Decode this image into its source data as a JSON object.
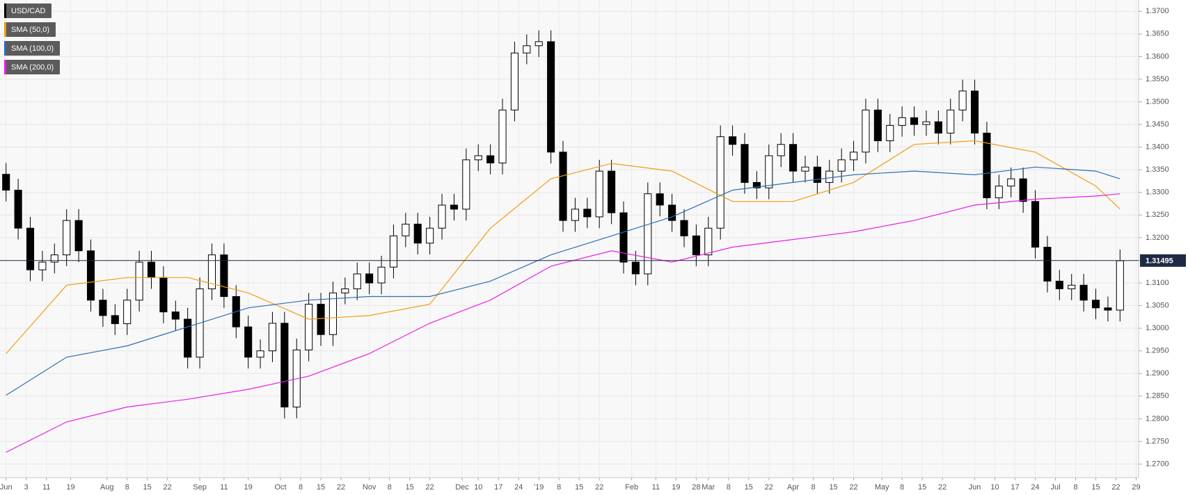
{
  "chart_data": {
    "type": "candlestick",
    "series": [
      {
        "name": "USD/CAD",
        "color": "#000000",
        "x": [
          0,
          3,
          6,
          9,
          12,
          15,
          18,
          21,
          24,
          27,
          30,
          33,
          36,
          39,
          42,
          45,
          48,
          51,
          54,
          57,
          60,
          63,
          66,
          69,
          72,
          75,
          78,
          81,
          84,
          87,
          90,
          93,
          96,
          99,
          102,
          105,
          108,
          111,
          114,
          117,
          120,
          123,
          126,
          129,
          132,
          135,
          138,
          141,
          144,
          147,
          150,
          153,
          156,
          159,
          162,
          165,
          168,
          171,
          174,
          177,
          180,
          183,
          186,
          189,
          192,
          195,
          198,
          201,
          204,
          207,
          210,
          213,
          216,
          219,
          222,
          225,
          228,
          231,
          234,
          237,
          240,
          243,
          246,
          249,
          252,
          255,
          258,
          261,
          264,
          267,
          270,
          273,
          276
        ],
        "open": [
          1.334,
          1.3305,
          1.3221,
          1.3129,
          1.3146,
          1.3162,
          1.3238,
          1.3171,
          1.3062,
          1.3028,
          1.301,
          1.3062,
          1.3146,
          1.3112,
          1.3036,
          1.302,
          1.2936,
          1.3087,
          1.3162,
          1.307,
          1.3003,
          1.2936,
          1.295,
          1.3011,
          1.2826,
          1.2952,
          1.3053,
          1.2986,
          1.3078,
          1.3087,
          1.312,
          1.31,
          1.3135,
          1.3204,
          1.323,
          1.3188,
          1.3221,
          1.3272,
          1.3263,
          1.3372,
          1.3381,
          1.3365,
          1.3482,
          1.3608,
          1.3624,
          1.3633,
          1.3389,
          1.3238,
          1.3263,
          1.3246,
          1.3347,
          1.3255,
          1.3146,
          1.312,
          1.3297,
          1.3272,
          1.3238,
          1.3204,
          1.3162,
          1.3221,
          1.3423,
          1.3406,
          1.3322,
          1.331,
          1.3381,
          1.3406,
          1.3347,
          1.3356,
          1.3322,
          1.3347,
          1.3372,
          1.3389,
          1.3482,
          1.3414,
          1.3448,
          1.3465,
          1.345,
          1.3456,
          1.3431,
          1.3482,
          1.3524,
          1.3431,
          1.3288,
          1.3314,
          1.333,
          1.328,
          1.3179,
          1.3104,
          1.3087,
          1.3095,
          1.3062,
          1.3045,
          1.304
        ],
        "high": [
          1.3365,
          1.333,
          1.3246,
          1.3171,
          1.3187,
          1.3263,
          1.3263,
          1.3196,
          1.3087,
          1.3053,
          1.3087,
          1.3171,
          1.3171,
          1.3137,
          1.3061,
          1.3045,
          1.3112,
          1.3187,
          1.3187,
          1.3095,
          1.3028,
          1.2975,
          1.3036,
          1.3036,
          1.2977,
          1.3078,
          1.3078,
          1.3103,
          1.3112,
          1.3145,
          1.3145,
          1.316,
          1.3229,
          1.3255,
          1.3255,
          1.3246,
          1.3297,
          1.3297,
          1.3397,
          1.3406,
          1.3406,
          1.3507,
          1.3633,
          1.3649,
          1.3658,
          1.3658,
          1.3414,
          1.3288,
          1.3288,
          1.3372,
          1.3372,
          1.328,
          1.3171,
          1.3322,
          1.3322,
          1.3297,
          1.3263,
          1.3229,
          1.3246,
          1.3448,
          1.3448,
          1.3431,
          1.3347,
          1.3406,
          1.3431,
          1.3431,
          1.3381,
          1.3381,
          1.3372,
          1.3397,
          1.3414,
          1.3507,
          1.3507,
          1.3473,
          1.349,
          1.349,
          1.3481,
          1.3481,
          1.3507,
          1.3549,
          1.3549,
          1.3456,
          1.3339,
          1.3355,
          1.3355,
          1.3305,
          1.3204,
          1.3129,
          1.312,
          1.312,
          1.3087,
          1.307,
          1.3174
        ],
        "low": [
          1.328,
          1.3196,
          1.3104,
          1.3104,
          1.3121,
          1.3137,
          1.3146,
          1.3037,
          1.3003,
          1.2985,
          1.2985,
          1.3037,
          1.3087,
          1.3011,
          1.2995,
          1.2911,
          1.2911,
          1.3062,
          1.3045,
          1.2978,
          1.2911,
          1.2911,
          1.2925,
          1.2801,
          1.2801,
          1.2927,
          1.2961,
          1.2961,
          1.3053,
          1.3062,
          1.3075,
          1.3075,
          1.311,
          1.3179,
          1.3163,
          1.3163,
          1.3196,
          1.3238,
          1.3238,
          1.3347,
          1.334,
          1.334,
          1.3457,
          1.3583,
          1.3599,
          1.3364,
          1.3213,
          1.3213,
          1.3221,
          1.3221,
          1.323,
          1.3121,
          1.3095,
          1.3095,
          1.3247,
          1.3213,
          1.3179,
          1.3137,
          1.3137,
          1.3196,
          1.3381,
          1.3297,
          1.3285,
          1.3285,
          1.3356,
          1.3322,
          1.3322,
          1.3297,
          1.3297,
          1.3322,
          1.3347,
          1.3364,
          1.3389,
          1.3389,
          1.3423,
          1.3425,
          1.3425,
          1.3406,
          1.3406,
          1.3457,
          1.3406,
          1.3263,
          1.3263,
          1.3289,
          1.3255,
          1.3154,
          1.3079,
          1.3062,
          1.3062,
          1.3037,
          1.302,
          1.3015,
          1.3015
        ],
        "close": [
          1.3305,
          1.3221,
          1.3129,
          1.3146,
          1.3162,
          1.3238,
          1.3171,
          1.3062,
          1.3028,
          1.301,
          1.3062,
          1.3146,
          1.3112,
          1.3036,
          1.302,
          1.2936,
          1.3087,
          1.3162,
          1.307,
          1.3003,
          1.2936,
          1.295,
          1.3011,
          1.2826,
          1.2952,
          1.3053,
          1.2986,
          1.3078,
          1.3087,
          1.312,
          1.31,
          1.3135,
          1.3204,
          1.323,
          1.3188,
          1.3221,
          1.3272,
          1.3263,
          1.3372,
          1.3381,
          1.3365,
          1.3482,
          1.3608,
          1.3624,
          1.3633,
          1.3389,
          1.3238,
          1.3263,
          1.3246,
          1.3347,
          1.3255,
          1.3146,
          1.312,
          1.3297,
          1.3272,
          1.3238,
          1.3204,
          1.3162,
          1.3221,
          1.3423,
          1.3406,
          1.3322,
          1.331,
          1.3381,
          1.3406,
          1.3347,
          1.3356,
          1.3322,
          1.3347,
          1.3372,
          1.3389,
          1.3482,
          1.3414,
          1.3448,
          1.3465,
          1.345,
          1.3456,
          1.3431,
          1.3482,
          1.3524,
          1.3431,
          1.3288,
          1.3314,
          1.333,
          1.328,
          1.3179,
          1.3104,
          1.3087,
          1.3095,
          1.3062,
          1.3045,
          1.304,
          1.3149
        ]
      }
    ],
    "sma": [
      {
        "name": "SMA (50,0)",
        "color": "#f39c12",
        "x": [
          0,
          15,
          30,
          45,
          60,
          75,
          90,
          105,
          120,
          135,
          150,
          165,
          180,
          195,
          210,
          225,
          240,
          255,
          270,
          276
        ],
        "values": [
          1.2944,
          1.3095,
          1.3112,
          1.3112,
          1.3078,
          1.302,
          1.3028,
          1.3053,
          1.3221,
          1.333,
          1.3364,
          1.3347,
          1.328,
          1.328,
          1.3322,
          1.3406,
          1.3414,
          1.3389,
          1.3314,
          1.3263
        ]
      },
      {
        "name": "SMA (100,0)",
        "color": "#2f6db5",
        "x": [
          0,
          15,
          30,
          45,
          60,
          75,
          90,
          105,
          120,
          135,
          150,
          165,
          180,
          195,
          210,
          225,
          240,
          255,
          270,
          276
        ],
        "values": [
          1.2852,
          1.2936,
          1.2961,
          1.3003,
          1.3045,
          1.3062,
          1.307,
          1.307,
          1.3104,
          1.3162,
          1.3204,
          1.3246,
          1.3305,
          1.3322,
          1.3339,
          1.3347,
          1.3339,
          1.3356,
          1.3347,
          1.333
        ]
      },
      {
        "name": "SMA (200,0)",
        "color": "#e81ee8",
        "x": [
          0,
          15,
          30,
          45,
          60,
          75,
          90,
          105,
          120,
          135,
          150,
          165,
          180,
          195,
          210,
          225,
          240,
          255,
          270,
          276
        ],
        "values": [
          1.2726,
          1.2793,
          1.2826,
          1.2843,
          1.2865,
          1.2894,
          1.2944,
          1.3011,
          1.3062,
          1.3137,
          1.3171,
          1.3146,
          1.3179,
          1.3196,
          1.3213,
          1.3238,
          1.3272,
          1.3285,
          1.3292,
          1.3297
        ]
      }
    ],
    "last_price": 1.31495,
    "xlim": [
      -1.5,
      280.6
    ],
    "ylim": [
      1.267,
      1.3725
    ],
    "grid": true,
    "yticks": [
      {
        "value": 1.27,
        "label": "1.2700"
      },
      {
        "value": 1.275,
        "label": "1.2750"
      },
      {
        "value": 1.28,
        "label": "1.2800"
      },
      {
        "value": 1.285,
        "label": "1.2850"
      },
      {
        "value": 1.29,
        "label": "1.2900"
      },
      {
        "value": 1.295,
        "label": "1.2950"
      },
      {
        "value": 1.3,
        "label": "1.3000"
      },
      {
        "value": 1.305,
        "label": "1.3050"
      },
      {
        "value": 1.31,
        "label": "1.3100"
      },
      {
        "value": 1.315,
        "label": "1.3150"
      },
      {
        "value": 1.32,
        "label": "1.3200"
      },
      {
        "value": 1.325,
        "label": "1.3250"
      },
      {
        "value": 1.33,
        "label": "1.3300"
      },
      {
        "value": 1.335,
        "label": "1.3350"
      },
      {
        "value": 1.34,
        "label": "1.3400"
      },
      {
        "value": 1.345,
        "label": "1.3450"
      },
      {
        "value": 1.35,
        "label": "1.3500"
      },
      {
        "value": 1.355,
        "label": "1.3550"
      },
      {
        "value": 1.36,
        "label": "1.3600"
      },
      {
        "value": 1.365,
        "label": "1.3650"
      },
      {
        "value": 1.37,
        "label": "1.3700"
      }
    ],
    "xticks": [
      {
        "value": 0,
        "label": "Jun"
      },
      {
        "value": 5,
        "label": "3"
      },
      {
        "value": 10,
        "label": "11"
      },
      {
        "value": 16,
        "label": "19"
      },
      {
        "value": 25,
        "label": "Aug"
      },
      {
        "value": 30,
        "label": "8"
      },
      {
        "value": 35,
        "label": "15"
      },
      {
        "value": 40,
        "label": "22"
      },
      {
        "value": 48,
        "label": "Sep"
      },
      {
        "value": 54,
        "label": "11"
      },
      {
        "value": 60,
        "label": "19"
      },
      {
        "value": 68,
        "label": "Oct"
      },
      {
        "value": 73,
        "label": "8"
      },
      {
        "value": 78,
        "label": "15"
      },
      {
        "value": 83,
        "label": "22"
      },
      {
        "value": 90,
        "label": "Nov"
      },
      {
        "value": 95,
        "label": "8"
      },
      {
        "value": 100,
        "label": "15"
      },
      {
        "value": 105,
        "label": "22"
      },
      {
        "value": 113,
        "label": "Dec"
      },
      {
        "value": 117,
        "label": "10"
      },
      {
        "value": 122,
        "label": "17"
      },
      {
        "value": 127,
        "label": "24"
      },
      {
        "value": 132,
        "label": "'19"
      },
      {
        "value": 137,
        "label": "8"
      },
      {
        "value": 142,
        "label": "15"
      },
      {
        "value": 147,
        "label": "22"
      },
      {
        "value": 155,
        "label": "Feb"
      },
      {
        "value": 161,
        "label": "11"
      },
      {
        "value": 166,
        "label": "19"
      },
      {
        "value": 171,
        "label": "28"
      },
      {
        "value": 174,
        "label": "Mar"
      },
      {
        "value": 179,
        "label": "8"
      },
      {
        "value": 184,
        "label": "15"
      },
      {
        "value": 189,
        "label": "22"
      },
      {
        "value": 195,
        "label": "Apr"
      },
      {
        "value": 200,
        "label": "8"
      },
      {
        "value": 205,
        "label": "15"
      },
      {
        "value": 210,
        "label": "22"
      },
      {
        "value": 217,
        "label": "May"
      },
      {
        "value": 222,
        "label": "8"
      },
      {
        "value": 227,
        "label": "15"
      },
      {
        "value": 232,
        "label": "22"
      },
      {
        "value": 240,
        "label": "Jun"
      },
      {
        "value": 245,
        "label": "10"
      },
      {
        "value": 250,
        "label": "17"
      },
      {
        "value": 255,
        "label": "24"
      },
      {
        "value": 260,
        "label": "Jul"
      },
      {
        "value": 265,
        "label": "8"
      },
      {
        "value": 270,
        "label": "15"
      },
      {
        "value": 275,
        "label": "22"
      },
      {
        "value": 280,
        "label": "29"
      }
    ]
  }
}
